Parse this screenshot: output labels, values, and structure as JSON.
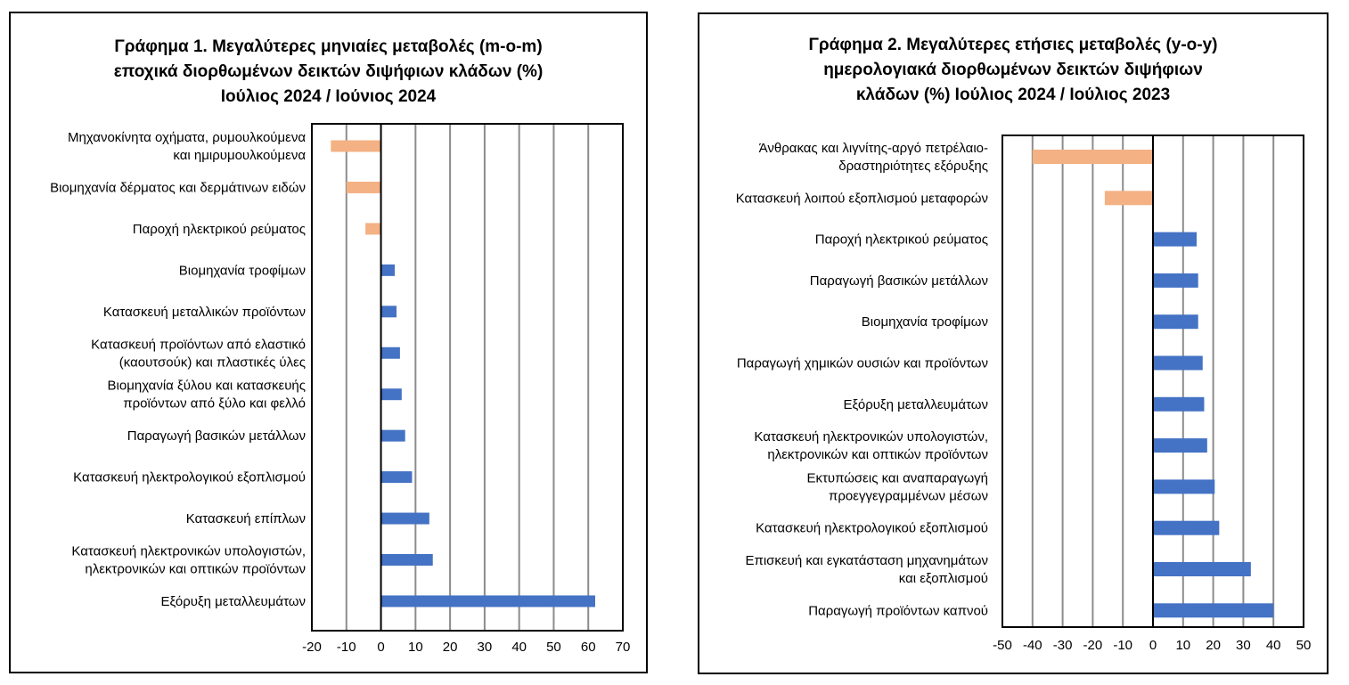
{
  "chart_data": [
    {
      "type": "bar",
      "orientation": "horizontal",
      "title_lines": [
        "Γράφημα 1. Μεγαλύτερες μηνιαίες μεταβολές (m-o-m)",
        "εποχικά διορθωμένων δεικτών διψήφιων κλάδων (%)",
        "Ιούλιος 2024 / Ιούνιος  2024"
      ],
      "xlim": [
        -20,
        70
      ],
      "xticks": [
        -20,
        -10,
        0,
        10,
        20,
        30,
        40,
        50,
        60,
        70
      ],
      "grid": true,
      "categories": [
        [
          "Μηχανοκίνητα οχήματα, ρυμουλκούμενα",
          "και ημιρυμουλκούμενα"
        ],
        [
          "Βιομηχανία δέρματος και δερμάτινων ειδών"
        ],
        [
          "Παροχή ηλεκτρικού ρεύματος"
        ],
        [
          "Βιομηχανία τροφίμων"
        ],
        [
          "Κατασκευή μεταλλικών προϊόντων"
        ],
        [
          "Κατασκευή προϊόντων από ελαστικό",
          "(καουτσούκ) και πλαστικές ύλες"
        ],
        [
          "Βιομηχανία ξύλου και κατασκευής",
          "προϊόντων από ξύλο και φελλό"
        ],
        [
          "Παραγωγή βασικών μετάλλων"
        ],
        [
          "Κατασκευή ηλεκτρολογικού εξοπλισμού"
        ],
        [
          "Κατασκευή επίπλων"
        ],
        [
          "Κατασκευή ηλεκτρονικών υπολογιστών,",
          "ηλεκτρονικών και οπτικών προϊόντων"
        ],
        [
          "Εξόρυξη μεταλλευμάτων"
        ]
      ],
      "values": [
        -14.5,
        -10,
        -4.5,
        4,
        4.5,
        5.5,
        6,
        7,
        9,
        14,
        15,
        62
      ],
      "colors": {
        "negative": "#F4B183",
        "positive": "#4472C4"
      }
    },
    {
      "type": "bar",
      "orientation": "horizontal",
      "title_lines": [
        "Γράφημα 2. Μεγαλύτερες ετήσιες μεταβολές (y-o-y)",
        "ημερολογιακά διορθωμένων δεικτών διψήφιων",
        "κλάδων (%)  Ιούλιος 2024 / Ιούλιος  2023"
      ],
      "xlim": [
        -50,
        50
      ],
      "xticks": [
        -50,
        -40,
        -30,
        -20,
        -10,
        0,
        10,
        20,
        30,
        40,
        50
      ],
      "grid": true,
      "categories": [
        [
          "Άνθρακας και λιγνίτης-αργό πετρέλαιο-",
          "δραστηριότητες εξόρυξης"
        ],
        [
          "Κατασκευή λοιπού εξοπλισμού μεταφορών"
        ],
        [
          "Παροχή ηλεκτρικού ρεύματος"
        ],
        [
          "Παραγωγή βασικών μετάλλων"
        ],
        [
          "Βιομηχανία τροφίμων"
        ],
        [
          "Παραγωγή χημικών ουσιών και προϊόντων"
        ],
        [
          "Εξόρυξη μεταλλευμάτων"
        ],
        [
          "Κατασκευή ηλεκτρονικών υπολογιστών,",
          "ηλεκτρονικών και οπτικών προϊόντων"
        ],
        [
          "Εκτυπώσεις και αναπαραγωγή",
          "προεγγεγραμμένων μέσων"
        ],
        [
          "Κατασκευή ηλεκτρολογικού εξοπλισμού"
        ],
        [
          "Επισκευή και εγκατάσταση μηχανημάτων",
          "και εξοπλισμού"
        ],
        [
          "Παραγωγή προϊόντων καπνού"
        ]
      ],
      "values": [
        -40,
        -16,
        14.5,
        15,
        15,
        16.5,
        17,
        18,
        20.5,
        22,
        32.5,
        40
      ],
      "colors": {
        "negative": "#F4B183",
        "positive": "#4472C4"
      }
    }
  ]
}
